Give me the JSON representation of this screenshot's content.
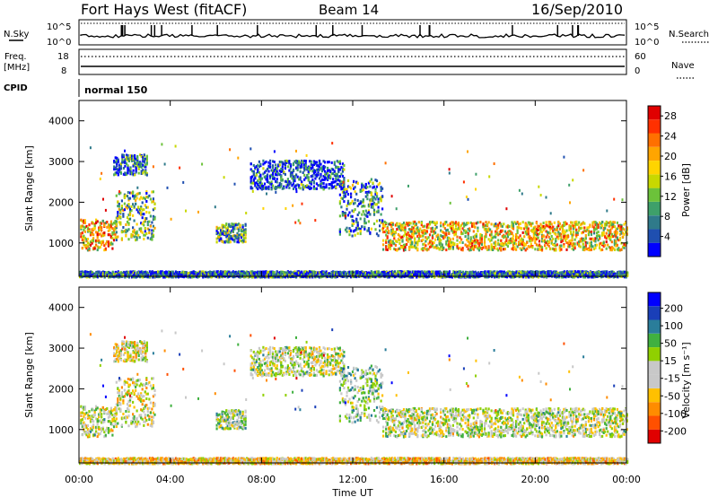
{
  "header": {
    "radar": "Fort Hays West (fitACF)",
    "beam": "Beam 14",
    "date": "16/Sep/2010"
  },
  "top_panels": {
    "nsky_label": "N.Sky",
    "nsky_ticks": [
      "10^5",
      "10^0"
    ],
    "nsearch_label": "N.Search",
    "nsearch_ticks": [
      "10^5",
      "10^0"
    ],
    "freq_label": "Freq.",
    "freq_unit": "[MHz]",
    "freq_ticks": [
      "18",
      "8"
    ],
    "nave_label": "Nave",
    "nave_ticks": [
      "60",
      "0"
    ],
    "cpid_label": "CPID",
    "cpid_value": "normal 150"
  },
  "chart_data": [
    {
      "type": "heatmap",
      "panel": "power",
      "ylabel": "Slant Range [km]",
      "xlabel": "",
      "ylim": [
        180,
        4500
      ],
      "yticks": [
        "1000",
        "2000",
        "3000",
        "4000"
      ],
      "xlim": [
        "00:00",
        "24:00"
      ],
      "colorbar": {
        "label": "Power [dB]",
        "ticks": [
          "4",
          "8",
          "12",
          "16",
          "20",
          "24",
          "28"
        ],
        "range": [
          0,
          30
        ],
        "colors": [
          "#0000ff",
          "#1f4fb0",
          "#2f7a8a",
          "#3ea06a",
          "#6cc23a",
          "#c8d800",
          "#ffd400",
          "#ffa500",
          "#ff7000",
          "#ff3000",
          "#e00000"
        ]
      },
      "echo_bands": [
        {
          "t_start": 0.05,
          "t_end": 1.6,
          "r_low": 850,
          "r_high": 1600,
          "value": 20
        },
        {
          "t_start": 1.6,
          "t_end": 3.3,
          "r_low": 1100,
          "r_high": 2300,
          "value": 12
        },
        {
          "t_start": 1.5,
          "t_end": 3.0,
          "r_low": 2700,
          "r_high": 3200,
          "value": 6
        },
        {
          "t_start": 6.0,
          "t_end": 7.3,
          "r_low": 1050,
          "r_high": 1500,
          "value": 10
        },
        {
          "t_start": 7.5,
          "t_end": 11.6,
          "r_low": 2350,
          "r_high": 3050,
          "value": 4
        },
        {
          "t_start": 11.4,
          "t_end": 13.3,
          "r_low": 1200,
          "r_high": 2600,
          "value": 8
        },
        {
          "t_start": 13.3,
          "t_end": 24.0,
          "r_low": 850,
          "r_high": 1550,
          "value": 18
        },
        {
          "t_start": 0.0,
          "t_end": 24.0,
          "r_low": 190,
          "r_high": 330,
          "value": 6
        }
      ]
    },
    {
      "type": "heatmap",
      "panel": "velocity",
      "ylabel": "Slant Range [km]",
      "xlabel": "Time UT",
      "ylim": [
        180,
        4500
      ],
      "yticks": [
        "1000",
        "2000",
        "3000",
        "4000"
      ],
      "xticks": [
        "00:00",
        "04:00",
        "08:00",
        "12:00",
        "16:00",
        "20:00",
        "00:00"
      ],
      "colorbar": {
        "label": "Velocity [m s⁻¹]",
        "ticks": [
          "200",
          "100",
          "50",
          "15",
          "-15",
          "-50",
          "-100",
          "-200"
        ],
        "range": [
          -250,
          250
        ],
        "colors": [
          "#e00000",
          "#ff5000",
          "#ff8c00",
          "#ffc000",
          "#c8c8c8",
          "#c8c8c8",
          "#90d000",
          "#40b040",
          "#2a7d9a",
          "#1a3fb8",
          "#0000ff"
        ]
      },
      "echo_bands": [
        {
          "t_start": 0.05,
          "t_end": 1.6,
          "r_low": 850,
          "r_high": 1600,
          "value": 0
        },
        {
          "t_start": 1.6,
          "t_end": 3.3,
          "r_low": 1100,
          "r_high": 2300,
          "value": -20
        },
        {
          "t_start": 1.5,
          "t_end": 3.0,
          "r_low": 2700,
          "r_high": 3200,
          "value": -30
        },
        {
          "t_start": 6.0,
          "t_end": 7.3,
          "r_low": 1050,
          "r_high": 1500,
          "value": 30
        },
        {
          "t_start": 7.5,
          "t_end": 11.6,
          "r_low": 2350,
          "r_high": 3050,
          "value": 0
        },
        {
          "t_start": 11.4,
          "t_end": 13.3,
          "r_low": 1200,
          "r_high": 2600,
          "value": 40
        },
        {
          "t_start": 13.3,
          "t_end": 24.0,
          "r_low": 850,
          "r_high": 1550,
          "value": 0
        },
        {
          "t_start": 0.0,
          "t_end": 24.0,
          "r_low": 190,
          "r_high": 330,
          "value": -60
        }
      ]
    }
  ]
}
